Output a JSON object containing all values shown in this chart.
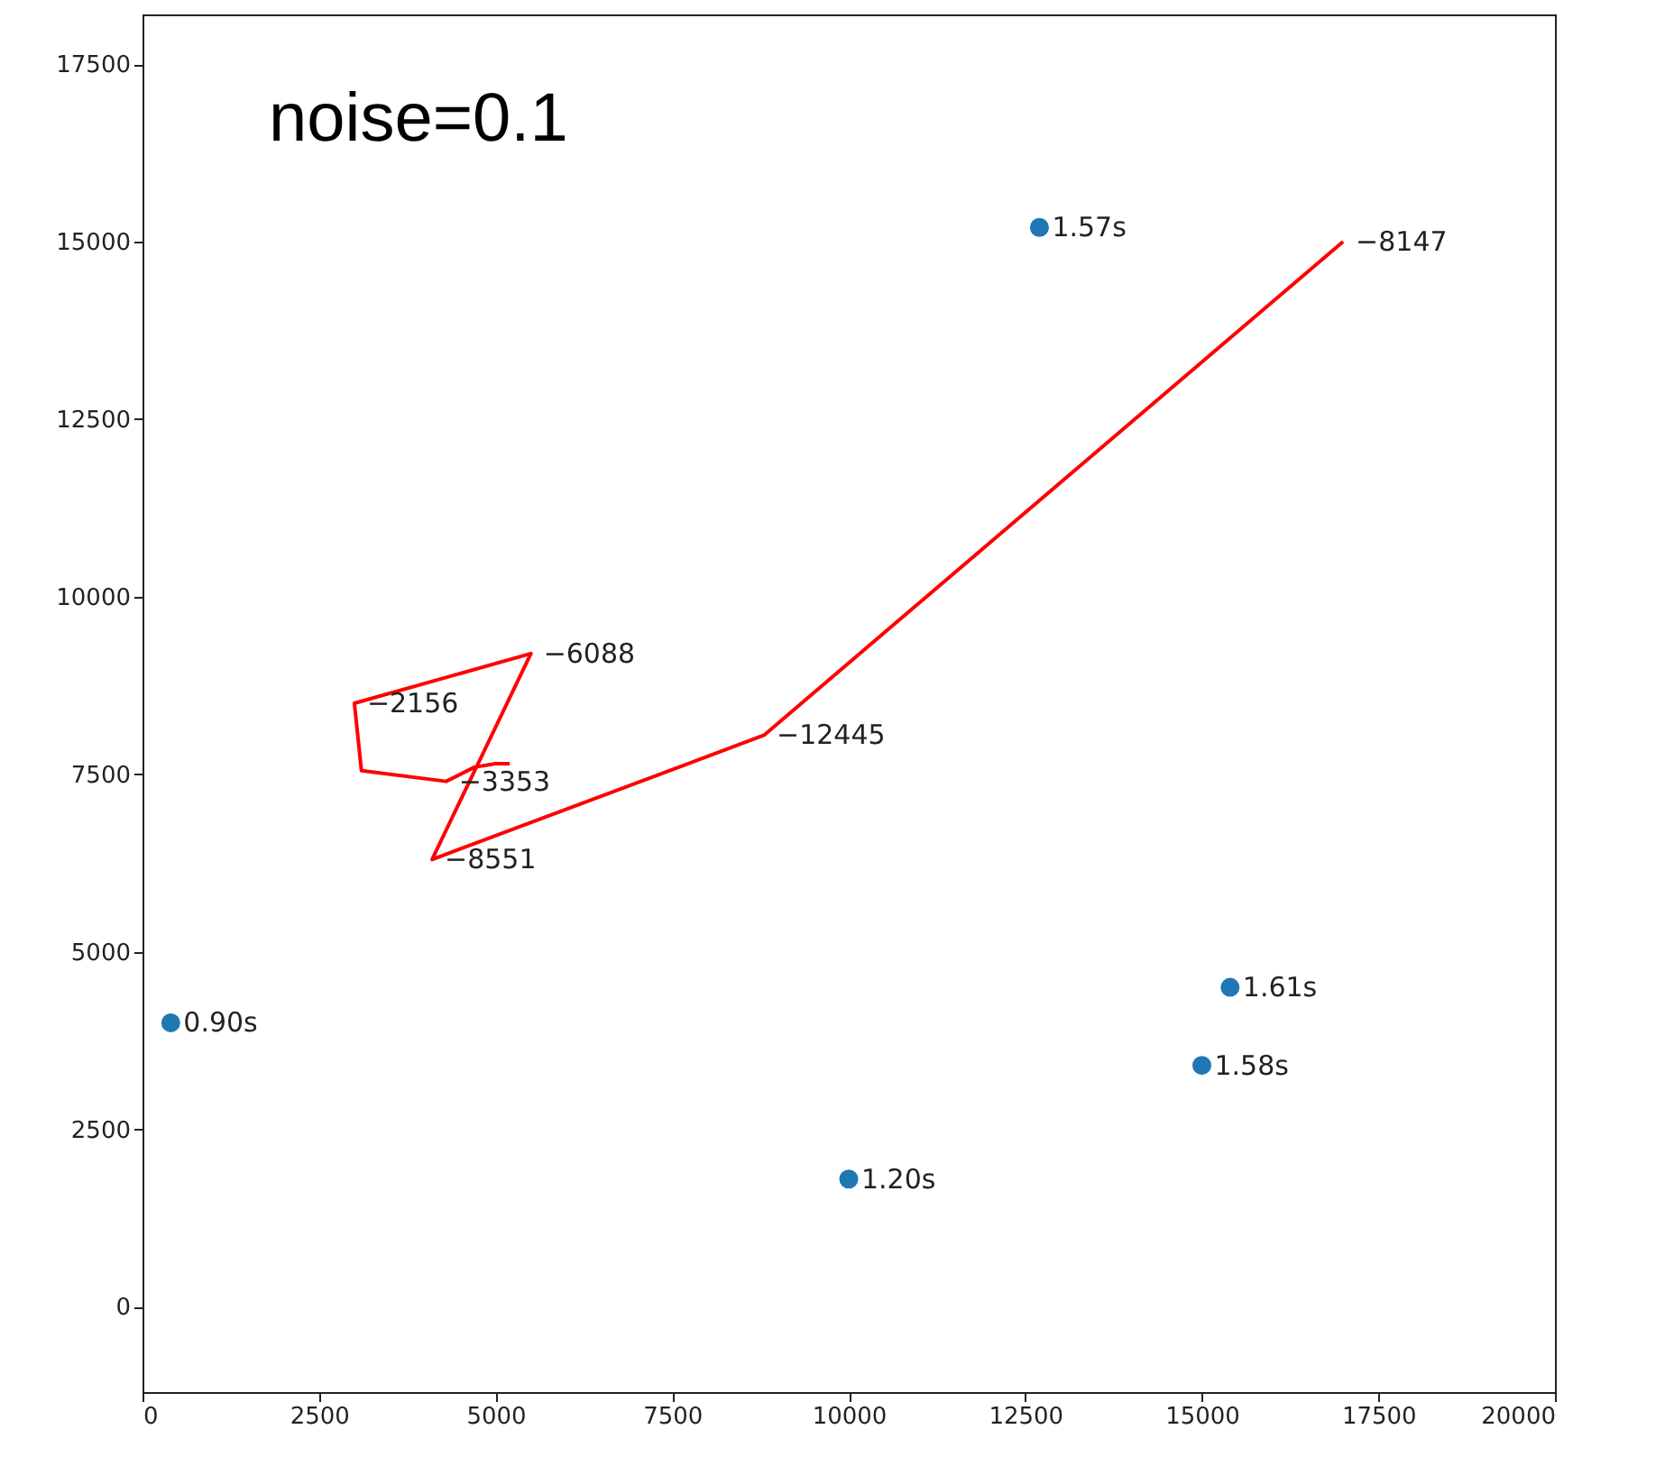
{
  "chart_data": {
    "type": "scatter",
    "xlim": [
      0,
      20000
    ],
    "ylim": [
      -1200,
      18200
    ],
    "xticks": [
      0,
      2500,
      5000,
      7500,
      10000,
      12500,
      15000,
      17500,
      20000
    ],
    "yticks": [
      0,
      2500,
      5000,
      7500,
      10000,
      12500,
      15000,
      17500
    ],
    "grid": false,
    "series": [
      {
        "type": "line",
        "color": "#ff0000",
        "x": [
          17000,
          8800,
          4100,
          5500,
          3000,
          3100,
          4300,
          4700,
          5000,
          5200
        ],
        "values": [
          15000,
          8050,
          6300,
          9200,
          8500,
          7550,
          7400,
          7600,
          7650,
          7650
        ]
      },
      {
        "type": "scatter",
        "marker": "circle",
        "color": "#1f77b4",
        "x": [
          400,
          10000,
          12700,
          15000,
          15400
        ],
        "values": [
          4000,
          1800,
          15200,
          3400,
          4500
        ]
      }
    ],
    "annotations": [
      "noise=0.1",
      {
        "text": "−8147",
        "x": 17000,
        "y": 15000
      },
      {
        "text": "−12445",
        "x": 8800,
        "y": 8050
      },
      {
        "text": "−8551",
        "x": 4100,
        "y": 6300
      },
      {
        "text": "−6088",
        "x": 5500,
        "y": 9200
      },
      {
        "text": "−2156",
        "x": 3000,
        "y": 8500
      },
      {
        "text": "−3353",
        "x": 4300,
        "y": 7400
      },
      {
        "text": "0.90s",
        "x": 400,
        "y": 4000
      },
      {
        "text": "1.20s",
        "x": 10000,
        "y": 1800
      },
      {
        "text": "1.57s",
        "x": 12700,
        "y": 15200
      },
      {
        "text": "1.58s",
        "x": 15000,
        "y": 3400
      },
      {
        "text": "1.61s",
        "x": 15400,
        "y": 4500
      }
    ]
  }
}
